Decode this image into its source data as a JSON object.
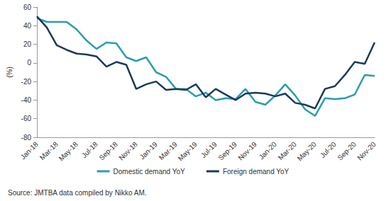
{
  "chart_data": {
    "type": "line",
    "y_label": "(%)",
    "source": "Source: JMTBA data compiled by Nikko AM.",
    "categories": [
      "Jan-18",
      null,
      "Mar-18",
      null,
      "May-18",
      null,
      "Jul-18",
      null,
      "Sep-18",
      null,
      "Nov-18",
      null,
      "Jan-19",
      null,
      "Mar-19",
      null,
      "May-19",
      null,
      "Jul-19",
      null,
      "Sep-19",
      null,
      "Nov-19",
      null,
      "Jan-20",
      null,
      "Mar-20",
      null,
      "May-20",
      null,
      "Jul-20",
      null,
      "Sep-20",
      null,
      "Nov-20"
    ],
    "series": [
      {
        "name": "Domestic demand YoY",
        "color": "#2a9db0",
        "values": [
          48,
          44,
          44,
          44,
          36,
          24,
          15,
          22,
          21,
          6,
          2,
          6,
          -10,
          -15,
          -28,
          -28,
          -36,
          -32,
          -40,
          -38,
          -39,
          -28,
          -42,
          -45,
          -35,
          -23,
          -35,
          -50,
          -57,
          -38,
          -39,
          -38,
          -34,
          -13,
          -14
        ]
      },
      {
        "name": "Foreign demand YoY",
        "color": "#1b3a5c",
        "values": [
          50,
          38,
          19,
          14,
          10,
          9,
          7,
          -4,
          1,
          -2,
          -28,
          -23,
          -20,
          -29,
          -28,
          -29,
          -23,
          -37,
          -28,
          -34,
          -40,
          -33,
          -32,
          -33,
          -36,
          -33,
          -43,
          -45,
          -49,
          -28,
          -25,
          -13,
          1,
          -1,
          22
        ]
      }
    ],
    "ylim": [
      -80,
      60
    ],
    "yticks": [
      -80,
      -60,
      -40,
      -20,
      0,
      20,
      40,
      60
    ],
    "grid": false,
    "legend": "bottom"
  }
}
